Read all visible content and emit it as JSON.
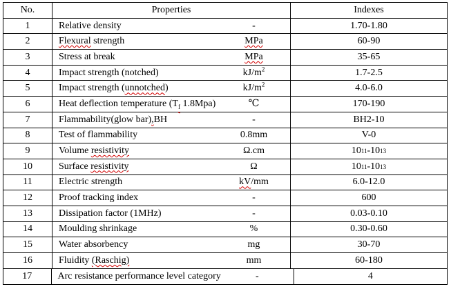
{
  "table": {
    "headers": {
      "no": "No.",
      "properties": "Properties",
      "indexes": "Indexes"
    },
    "rows": [
      {
        "no": "1",
        "name": [
          {
            "t": "Relative density"
          }
        ],
        "unit": [
          {
            "t": "-"
          }
        ],
        "index": [
          {
            "t": "1.70-1.80"
          }
        ]
      },
      {
        "no": "2",
        "name": [
          {
            "t": "Flexural",
            "wavy": true
          },
          {
            "t": " strength"
          }
        ],
        "unit": [
          {
            "t": "MPa",
            "wavy": true
          }
        ],
        "index": [
          {
            "t": "60-90"
          }
        ]
      },
      {
        "no": "3",
        "name": [
          {
            "t": "Stress at break"
          }
        ],
        "unit": [
          {
            "t": "MPa",
            "wavy": true
          }
        ],
        "index": [
          {
            "t": "35-65"
          }
        ]
      },
      {
        "no": "4",
        "name": [
          {
            "t": "Impact strength (notched)"
          }
        ],
        "unit": [
          {
            "t": "kJ/m"
          },
          {
            "t": "2",
            "sup": true
          }
        ],
        "index": [
          {
            "t": "1.7-2.5"
          }
        ]
      },
      {
        "no": "5",
        "name": [
          {
            "t": "Impact strength ("
          },
          {
            "t": "unnotched",
            "wavy": true
          },
          {
            "t": ")"
          }
        ],
        "unit": [
          {
            "t": "kJ/m"
          },
          {
            "t": "2",
            "sup": true
          }
        ],
        "index": [
          {
            "t": "4.0-6.0"
          }
        ]
      },
      {
        "no": "6",
        "name": [
          {
            "t": "Heat deflection temperature (T"
          },
          {
            "t": "f",
            "sub": true,
            "wavy": true
          },
          {
            "t": " 1.8Mpa)"
          }
        ],
        "unit": [
          {
            "t": "℃"
          }
        ],
        "index": [
          {
            "t": "170-190"
          }
        ]
      },
      {
        "no": "7",
        "name": [
          {
            "t": "Flammability(glow bar)"
          },
          {
            "t": ",",
            "wavy": true
          },
          {
            "t": "BH"
          }
        ],
        "unit": [
          {
            "t": "-"
          }
        ],
        "index": [
          {
            "t": "BH2-10"
          }
        ]
      },
      {
        "no": "8",
        "name": [
          {
            "t": "Test of flammability"
          }
        ],
        "unit": [
          {
            "t": "0.8mm"
          }
        ],
        "index": [
          {
            "t": "V-0"
          }
        ]
      },
      {
        "no": "9",
        "name": [
          {
            "t": "Volume "
          },
          {
            "t": "resistivity",
            "wavy": true
          }
        ],
        "unit": [
          {
            "t": "Ω.cm"
          }
        ],
        "index": [
          {
            "t": "10"
          },
          {
            "t": "11",
            "sup": true
          },
          {
            "t": "-10"
          },
          {
            "t": "13",
            "sup": true
          }
        ]
      },
      {
        "no": "10",
        "name": [
          {
            "t": "Surface "
          },
          {
            "t": "resistivity",
            "wavy": true
          }
        ],
        "unit": [
          {
            "t": "Ω"
          }
        ],
        "index": [
          {
            "t": "10"
          },
          {
            "t": "11",
            "sup": true
          },
          {
            "t": "-10"
          },
          {
            "t": "13",
            "sup": true
          }
        ]
      },
      {
        "no": "11",
        "name": [
          {
            "t": "Electric strength"
          }
        ],
        "unit": [
          {
            "t": "kV",
            "wavy": true
          },
          {
            "t": "/mm"
          }
        ],
        "index": [
          {
            "t": "6.0-12.0"
          }
        ]
      },
      {
        "no": "12",
        "name": [
          {
            "t": "Proof tracking index"
          }
        ],
        "unit": [
          {
            "t": "-"
          }
        ],
        "index": [
          {
            "t": "600"
          }
        ]
      },
      {
        "no": "13",
        "name": [
          {
            "t": "Dissipation factor (1MHz)"
          }
        ],
        "unit": [
          {
            "t": "-"
          }
        ],
        "index": [
          {
            "t": "0.03-0.10"
          }
        ]
      },
      {
        "no": "14",
        "name": [
          {
            "t": "Moulding shrinkage"
          }
        ],
        "unit": [
          {
            "t": "%"
          }
        ],
        "index": [
          {
            "t": "0.30-0.60"
          }
        ]
      },
      {
        "no": "15",
        "name": [
          {
            "t": "Water absorbency"
          }
        ],
        "unit": [
          {
            "t": "mg"
          }
        ],
        "index": [
          {
            "t": "30-70"
          }
        ]
      },
      {
        "no": "16",
        "name": [
          {
            "t": "Fluidity "
          },
          {
            "t": "(Raschig)",
            "wavy": true
          }
        ],
        "unit": [
          {
            "t": "mm"
          }
        ],
        "index": [
          {
            "t": "60-180"
          }
        ]
      },
      {
        "no": "17",
        "name": [
          {
            "t": "Arc resistance performance level category"
          }
        ],
        "unit": [
          {
            "t": "-"
          }
        ],
        "index": [
          {
            "t": "4"
          }
        ]
      }
    ]
  }
}
